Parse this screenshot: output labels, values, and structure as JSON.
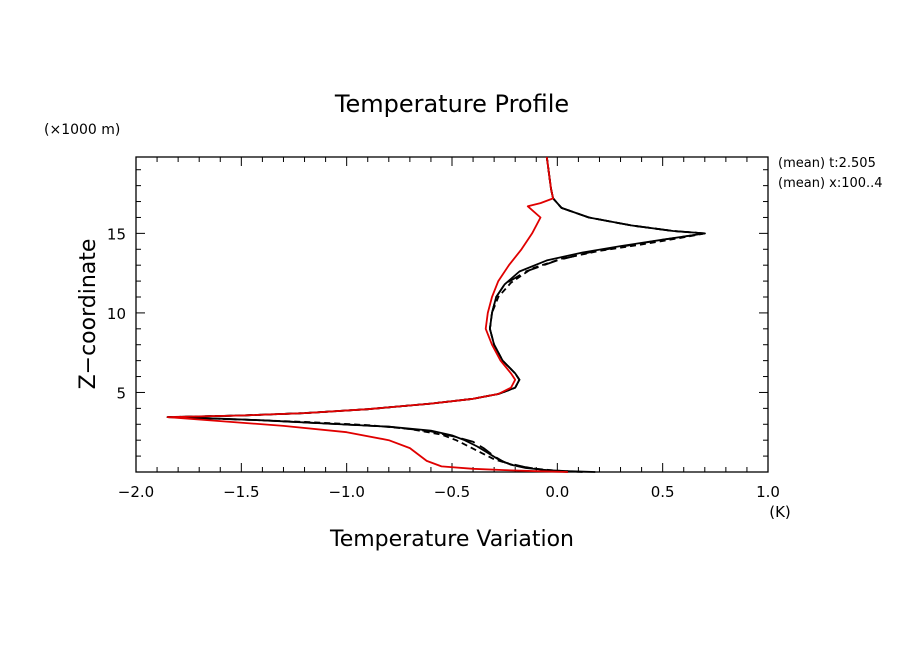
{
  "chart_data": {
    "type": "line",
    "title": "Temperature Profile",
    "xlabel": "Temperature Variation",
    "ylabel": "Z−coordinate",
    "x_unit": "(K)",
    "y_unit": "(×1000 m)",
    "annotations": [
      "(mean) t:2.505",
      "(mean) x:100..4"
    ],
    "xlim": [
      -2.0,
      1.0
    ],
    "ylim": [
      0,
      19.8
    ],
    "xticks": [
      -2.0,
      -1.5,
      -1.0,
      -0.5,
      0.0,
      0.5,
      1.0
    ],
    "xtick_labels": [
      "−2.0",
      "−1.5",
      "−1.0",
      "−0.5",
      "0.0",
      "0.5",
      "1.0"
    ],
    "yticks": [
      5,
      10,
      15
    ],
    "ytick_labels": [
      "5",
      "10",
      "15"
    ],
    "grid": false,
    "series": [
      {
        "color": "#000000",
        "dash": "",
        "points": [
          [
            0.18,
            0
          ],
          [
            0.05,
            0.05
          ],
          [
            -0.05,
            0.12
          ],
          [
            -0.15,
            0.25
          ],
          [
            -0.22,
            0.45
          ],
          [
            -0.28,
            0.8
          ],
          [
            -0.33,
            1.2
          ],
          [
            -0.38,
            1.6
          ],
          [
            -0.44,
            2.0
          ],
          [
            -0.5,
            2.3
          ],
          [
            -0.6,
            2.6
          ],
          [
            -0.8,
            2.85
          ],
          [
            -1.1,
            3.05
          ],
          [
            -1.4,
            3.25
          ],
          [
            -1.6,
            3.35
          ],
          [
            -1.85,
            3.45
          ],
          [
            -1.5,
            3.55
          ],
          [
            -1.2,
            3.7
          ],
          [
            -0.9,
            3.95
          ],
          [
            -0.6,
            4.3
          ],
          [
            -0.4,
            4.6
          ],
          [
            -0.28,
            4.9
          ],
          [
            -0.2,
            5.3
          ],
          [
            -0.18,
            5.8
          ],
          [
            -0.2,
            6.2
          ],
          [
            -0.26,
            7.0
          ],
          [
            -0.3,
            8.0
          ],
          [
            -0.32,
            9.0
          ],
          [
            -0.31,
            10.0
          ],
          [
            -0.29,
            11.0
          ],
          [
            -0.25,
            11.8
          ],
          [
            -0.18,
            12.6
          ],
          [
            -0.05,
            13.3
          ],
          [
            0.12,
            13.8
          ],
          [
            0.3,
            14.2
          ],
          [
            0.5,
            14.6
          ],
          [
            0.65,
            14.9
          ],
          [
            0.7,
            15.0
          ],
          [
            0.55,
            15.15
          ],
          [
            0.35,
            15.5
          ],
          [
            0.15,
            16.0
          ],
          [
            0.02,
            16.6
          ],
          [
            -0.02,
            17.2
          ],
          [
            -0.03,
            17.8
          ],
          [
            -0.05,
            19.8
          ]
        ]
      },
      {
        "color": "#000000",
        "dash": "6 4",
        "points": [
          [
            0.12,
            0
          ],
          [
            0.0,
            0.08
          ],
          [
            -0.1,
            0.2
          ],
          [
            -0.2,
            0.4
          ],
          [
            -0.3,
            0.8
          ],
          [
            -0.36,
            1.2
          ],
          [
            -0.42,
            1.6
          ],
          [
            -0.48,
            2.0
          ],
          [
            -0.55,
            2.35
          ],
          [
            -0.7,
            2.7
          ],
          [
            -0.9,
            2.95
          ],
          [
            -1.2,
            3.15
          ],
          [
            -1.5,
            3.3
          ],
          [
            -1.85,
            3.45
          ],
          [
            -1.5,
            3.55
          ],
          [
            -1.2,
            3.7
          ],
          [
            -0.9,
            3.95
          ],
          [
            -0.6,
            4.3
          ],
          [
            -0.4,
            4.6
          ],
          [
            -0.28,
            4.9
          ],
          [
            -0.2,
            5.3
          ],
          [
            -0.18,
            5.8
          ],
          [
            -0.2,
            6.2
          ],
          [
            -0.26,
            7.0
          ],
          [
            -0.3,
            8.0
          ],
          [
            -0.32,
            9.0
          ],
          [
            -0.31,
            10.0
          ],
          [
            -0.28,
            11.0
          ],
          [
            -0.22,
            11.9
          ],
          [
            -0.12,
            12.8
          ],
          [
            0.02,
            13.4
          ],
          [
            0.2,
            13.9
          ],
          [
            0.4,
            14.3
          ],
          [
            0.58,
            14.7
          ],
          [
            0.68,
            14.95
          ],
          [
            0.7,
            15.0
          ],
          [
            0.55,
            15.15
          ],
          [
            0.35,
            15.5
          ],
          [
            0.15,
            16.0
          ],
          [
            0.02,
            16.6
          ],
          [
            -0.02,
            17.2
          ],
          [
            -0.03,
            17.8
          ],
          [
            -0.05,
            19.8
          ]
        ]
      },
      {
        "color": "#000000",
        "dash": "14 6",
        "points": [
          [
            0.05,
            0
          ],
          [
            -0.05,
            0.1
          ],
          [
            -0.15,
            0.3
          ],
          [
            -0.25,
            0.6
          ],
          [
            -0.3,
            1.0
          ],
          [
            -0.35,
            1.5
          ],
          [
            -0.4,
            1.9
          ],
          [
            -0.48,
            2.2
          ],
          [
            -0.6,
            2.55
          ],
          [
            -0.8,
            2.85
          ],
          [
            -1.1,
            3.05
          ],
          [
            -1.4,
            3.25
          ],
          [
            -1.85,
            3.45
          ],
          [
            -1.5,
            3.55
          ],
          [
            -1.2,
            3.7
          ],
          [
            -0.9,
            3.95
          ],
          [
            -0.6,
            4.3
          ],
          [
            -0.4,
            4.6
          ],
          [
            -0.28,
            4.9
          ],
          [
            -0.2,
            5.3
          ],
          [
            -0.18,
            5.8
          ],
          [
            -0.2,
            6.2
          ],
          [
            -0.26,
            7.0
          ],
          [
            -0.3,
            8.0
          ],
          [
            -0.32,
            9.0
          ],
          [
            -0.31,
            10.0
          ],
          [
            -0.29,
            11.0
          ],
          [
            -0.25,
            11.8
          ],
          [
            -0.15,
            12.6
          ],
          [
            0.0,
            13.3
          ],
          [
            0.15,
            13.8
          ],
          [
            0.32,
            14.2
          ],
          [
            0.5,
            14.6
          ],
          [
            0.65,
            14.9
          ],
          [
            0.7,
            15.0
          ],
          [
            0.55,
            15.15
          ],
          [
            0.35,
            15.5
          ],
          [
            0.15,
            16.0
          ],
          [
            0.02,
            16.6
          ],
          [
            -0.02,
            17.2
          ],
          [
            -0.03,
            17.8
          ],
          [
            -0.05,
            19.8
          ]
        ]
      },
      {
        "color": "#e00000",
        "dash": "",
        "points": [
          [
            0.05,
            0
          ],
          [
            -0.1,
            0.05
          ],
          [
            -0.25,
            0.12
          ],
          [
            -0.4,
            0.2
          ],
          [
            -0.55,
            0.35
          ],
          [
            -0.62,
            0.7
          ],
          [
            -0.66,
            1.1
          ],
          [
            -0.7,
            1.5
          ],
          [
            -0.8,
            2.0
          ],
          [
            -1.0,
            2.5
          ],
          [
            -1.3,
            2.9
          ],
          [
            -1.6,
            3.2
          ],
          [
            -1.85,
            3.45
          ],
          [
            -1.5,
            3.55
          ],
          [
            -1.2,
            3.7
          ],
          [
            -0.9,
            3.95
          ],
          [
            -0.6,
            4.3
          ],
          [
            -0.4,
            4.6
          ],
          [
            -0.28,
            4.9
          ],
          [
            -0.22,
            5.3
          ],
          [
            -0.2,
            5.8
          ],
          [
            -0.22,
            6.2
          ],
          [
            -0.27,
            7.0
          ],
          [
            -0.31,
            8.0
          ],
          [
            -0.34,
            9.0
          ],
          [
            -0.33,
            10.0
          ],
          [
            -0.31,
            11.0
          ],
          [
            -0.28,
            12.0
          ],
          [
            -0.23,
            13.0
          ],
          [
            -0.17,
            14.0
          ],
          [
            -0.12,
            15.0
          ],
          [
            -0.08,
            16.0
          ],
          [
            -0.14,
            16.7
          ],
          [
            -0.08,
            16.9
          ],
          [
            -0.02,
            17.2
          ],
          [
            -0.03,
            17.8
          ],
          [
            -0.05,
            19.8
          ]
        ]
      }
    ]
  }
}
